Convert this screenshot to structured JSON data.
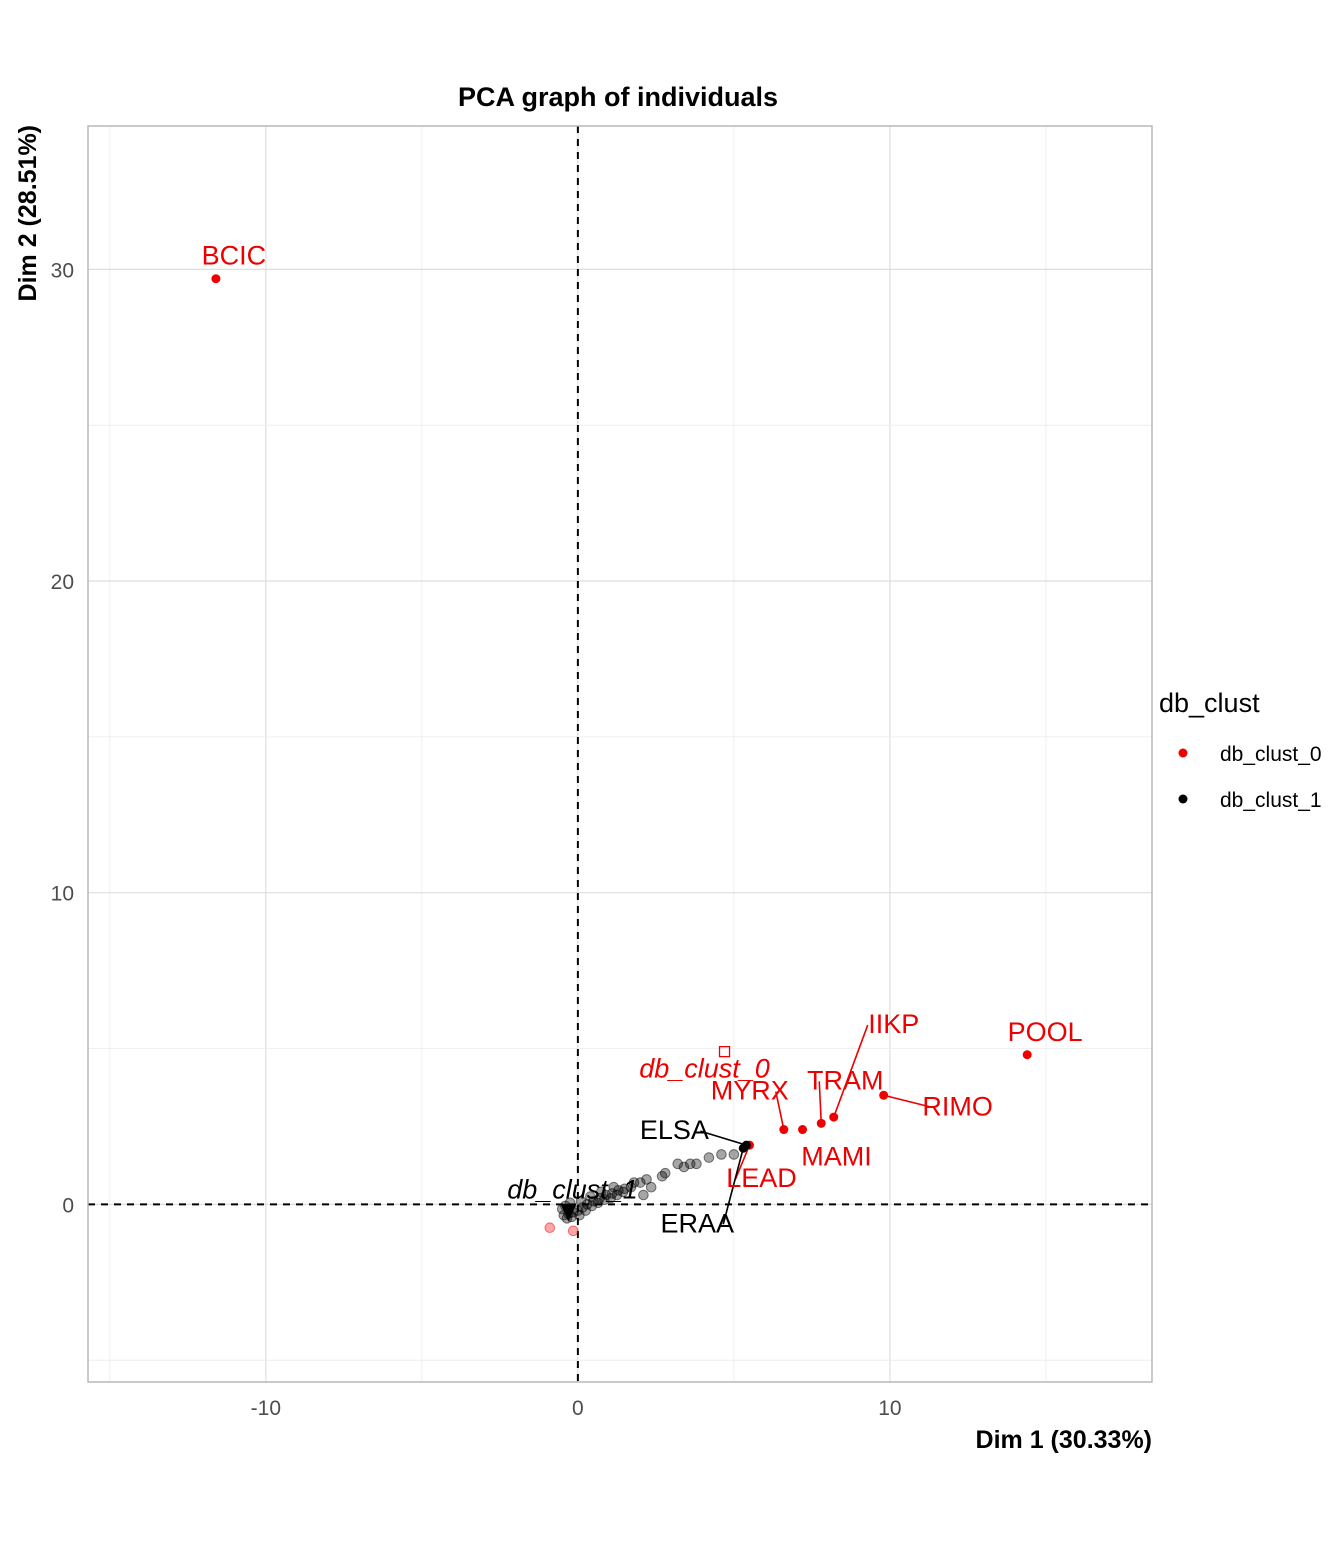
{
  "chart_data": {
    "type": "scatter",
    "title": "PCA graph of individuals",
    "xlabel": "Dim 1 (30.33%)",
    "ylabel": "Dim 2 (28.51%)",
    "xlim": [
      -15.7,
      18.4
    ],
    "ylim": [
      -5.7,
      34.6
    ],
    "x_ticks": [
      -10,
      0,
      10
    ],
    "y_ticks": [
      0,
      10,
      20,
      30
    ],
    "grid": true,
    "reference_lines": [
      {
        "axis": "x",
        "value": 0,
        "style": "dashed"
      },
      {
        "axis": "y",
        "value": 0,
        "style": "dashed"
      }
    ],
    "legend": {
      "title": "db_clust",
      "placement": "right",
      "entries": [
        {
          "label": "db_clust_0",
          "color": "#ee0000"
        },
        {
          "label": "db_clust_1",
          "color": "#000000"
        }
      ]
    },
    "labeled_points": [
      {
        "label": "BCIC",
        "x": -11.6,
        "y": 29.7,
        "group": "db_clust_0"
      },
      {
        "label": "POOL",
        "x": 14.4,
        "y": 4.8,
        "group": "db_clust_0"
      },
      {
        "label": "RIMO",
        "x": 9.8,
        "y": 3.5,
        "group": "db_clust_0"
      },
      {
        "label": "IIKP",
        "x": 8.2,
        "y": 2.8,
        "group": "db_clust_0"
      },
      {
        "label": "TRAM",
        "x": 7.8,
        "y": 2.6,
        "group": "db_clust_0"
      },
      {
        "label": "MAMI",
        "x": 7.2,
        "y": 2.4,
        "group": "db_clust_0"
      },
      {
        "label": "MYRX",
        "x": 6.6,
        "y": 2.4,
        "group": "db_clust_0"
      },
      {
        "label": "LEAD",
        "x": 5.5,
        "y": 1.9,
        "group": "db_clust_0"
      },
      {
        "label": "ELSA",
        "x": 5.4,
        "y": 1.9,
        "group": "db_clust_1"
      },
      {
        "label": "ERAA",
        "x": 5.3,
        "y": 1.8,
        "group": "db_clust_1"
      }
    ],
    "centroids": [
      {
        "label": "db_clust_0",
        "x": 4.7,
        "y": 4.9,
        "group": "db_clust_0"
      },
      {
        "label": "db_clust_1",
        "x": -0.3,
        "y": -0.3,
        "group": "db_clust_1"
      }
    ],
    "faint_points": [
      {
        "x": -0.9,
        "y": -0.75,
        "group": "db_clust_0"
      },
      {
        "x": -0.15,
        "y": -0.85,
        "group": "db_clust_0"
      },
      {
        "x": 5.0,
        "y": 1.6,
        "group": "db_clust_1"
      },
      {
        "x": 4.6,
        "y": 1.6,
        "group": "db_clust_1"
      },
      {
        "x": 4.2,
        "y": 1.5,
        "group": "db_clust_1"
      },
      {
        "x": 3.8,
        "y": 1.3,
        "group": "db_clust_1"
      },
      {
        "x": 3.6,
        "y": 1.3,
        "group": "db_clust_1"
      },
      {
        "x": 3.4,
        "y": 1.2,
        "group": "db_clust_1"
      },
      {
        "x": 3.2,
        "y": 1.3,
        "group": "db_clust_1"
      },
      {
        "x": 2.8,
        "y": 1.0,
        "group": "db_clust_1"
      },
      {
        "x": 2.7,
        "y": 0.9,
        "group": "db_clust_1"
      },
      {
        "x": 2.2,
        "y": 0.8,
        "group": "db_clust_1"
      },
      {
        "x": 2.0,
        "y": 0.7,
        "group": "db_clust_1"
      },
      {
        "x": 1.8,
        "y": 0.7,
        "group": "db_clust_1"
      },
      {
        "x": 1.7,
        "y": 0.55,
        "group": "db_clust_1"
      },
      {
        "x": 1.5,
        "y": 0.5,
        "group": "db_clust_1"
      },
      {
        "x": 1.3,
        "y": 0.45,
        "group": "db_clust_1"
      },
      {
        "x": 1.1,
        "y": 0.35,
        "group": "db_clust_1"
      },
      {
        "x": 0.9,
        "y": 0.3,
        "group": "db_clust_1"
      },
      {
        "x": 0.7,
        "y": 0.2,
        "group": "db_clust_1"
      },
      {
        "x": 0.5,
        "y": 0.1,
        "group": "db_clust_1"
      },
      {
        "x": 0.3,
        "y": 0.0,
        "group": "db_clust_1"
      },
      {
        "x": 0.15,
        "y": -0.1,
        "group": "db_clust_1"
      },
      {
        "x": 0.0,
        "y": -0.2,
        "group": "db_clust_1"
      },
      {
        "x": -0.15,
        "y": -0.25,
        "group": "db_clust_1"
      },
      {
        "x": -0.3,
        "y": -0.3,
        "group": "db_clust_1"
      },
      {
        "x": -0.45,
        "y": -0.35,
        "group": "db_clust_1"
      },
      {
        "x": -0.5,
        "y": -0.15,
        "group": "db_clust_1"
      },
      {
        "x": -0.4,
        "y": -0.05,
        "group": "db_clust_1"
      },
      {
        "x": -0.35,
        "y": -0.45,
        "group": "db_clust_1"
      },
      {
        "x": -0.2,
        "y": -0.4,
        "group": "db_clust_1"
      },
      {
        "x": 0.05,
        "y": -0.35,
        "group": "db_clust_1"
      },
      {
        "x": 0.25,
        "y": -0.2,
        "group": "db_clust_1"
      },
      {
        "x": 0.45,
        "y": -0.05,
        "group": "db_clust_1"
      },
      {
        "x": 0.65,
        "y": 0.05,
        "group": "db_clust_1"
      },
      {
        "x": 0.85,
        "y": 0.15,
        "group": "db_clust_1"
      },
      {
        "x": 1.05,
        "y": 0.2,
        "group": "db_clust_1"
      },
      {
        "x": 1.25,
        "y": 0.3,
        "group": "db_clust_1"
      },
      {
        "x": 1.45,
        "y": 0.4,
        "group": "db_clust_1"
      },
      {
        "x": 2.1,
        "y": 0.3,
        "group": "db_clust_1"
      },
      {
        "x": 2.35,
        "y": 0.55,
        "group": "db_clust_1"
      },
      {
        "x": -0.25,
        "y": 0.05,
        "group": "db_clust_1"
      },
      {
        "x": 0.1,
        "y": 0.1,
        "group": "db_clust_1"
      },
      {
        "x": 0.4,
        "y": 0.25,
        "group": "db_clust_1"
      },
      {
        "x": 0.75,
        "y": 0.4,
        "group": "db_clust_1"
      },
      {
        "x": 1.15,
        "y": 0.55,
        "group": "db_clust_1"
      }
    ]
  }
}
